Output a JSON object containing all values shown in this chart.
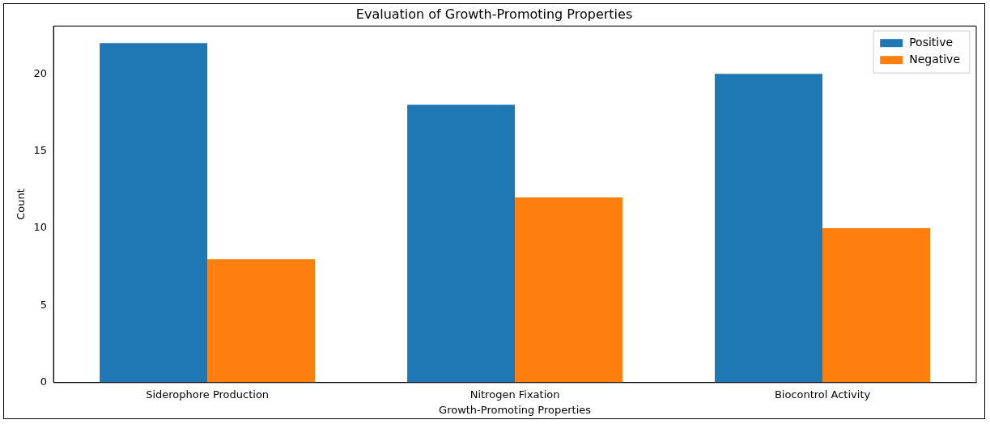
{
  "chart_data": {
    "type": "bar",
    "title": "Evaluation of Growth-Promoting Properties",
    "xlabel": "Growth-Promoting Properties",
    "ylabel": "Count",
    "categories": [
      "Siderophore Production",
      "Nitrogen Fixation",
      "Biocontrol Activity"
    ],
    "series": [
      {
        "name": "Positive",
        "color": "#1f77b4",
        "values": [
          22,
          18,
          20
        ]
      },
      {
        "name": "Negative",
        "color": "#ff7f0e",
        "values": [
          8,
          12,
          10
        ]
      }
    ],
    "ylim": [
      0,
      23.1
    ],
    "yticks": [
      0,
      5,
      10,
      15,
      20
    ],
    "grid": false,
    "legend": "top right"
  }
}
